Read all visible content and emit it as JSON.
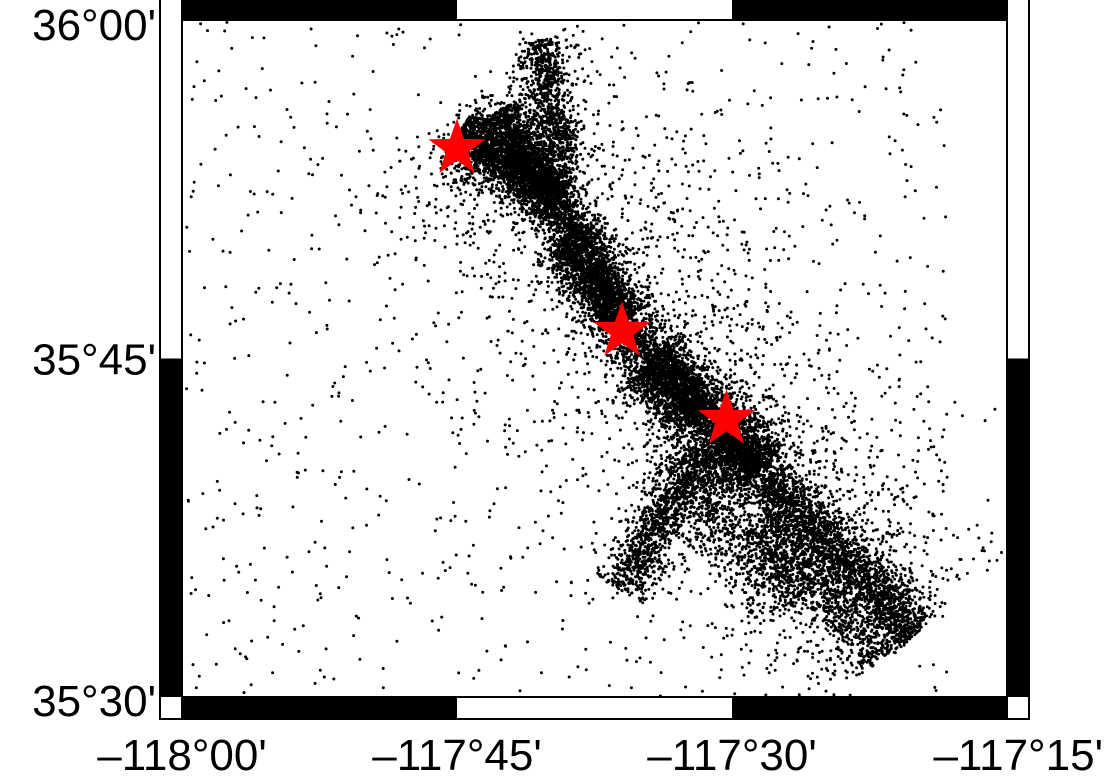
{
  "map": {
    "type": "scatter-map",
    "projection": "lon-lat",
    "lon_range": [
      -118.0,
      -117.25
    ],
    "lat_range": [
      35.5,
      36.0
    ],
    "frame": "gmt-fancy-alternating",
    "frame_colors": {
      "dark": "#000000",
      "light": "#ffffff"
    },
    "x_ticks": [
      {
        "value": -118.0,
        "label": "–118°00'"
      },
      {
        "value": -117.75,
        "label": "–117°45'"
      },
      {
        "value": -117.5,
        "label": "–117°30'"
      },
      {
        "value": -117.25,
        "label": "–117°15'"
      }
    ],
    "y_ticks": [
      {
        "value": 36.0,
        "label": "36°00'"
      },
      {
        "value": 35.75,
        "label": "35°45'"
      },
      {
        "value": 35.5,
        "label": "35°30'"
      }
    ],
    "events": {
      "symbol": "dot",
      "color": "#000000",
      "trend": "dense NW–SE linear cluster with diffuse background seismicity"
    },
    "mainshocks": {
      "symbol": "star",
      "color": "#ff0000",
      "points": [
        {
          "lon": -117.75,
          "lat": 35.905
        },
        {
          "lon": -117.6,
          "lat": 35.77
        },
        {
          "lon": -117.505,
          "lat": 35.705
        }
      ]
    }
  }
}
